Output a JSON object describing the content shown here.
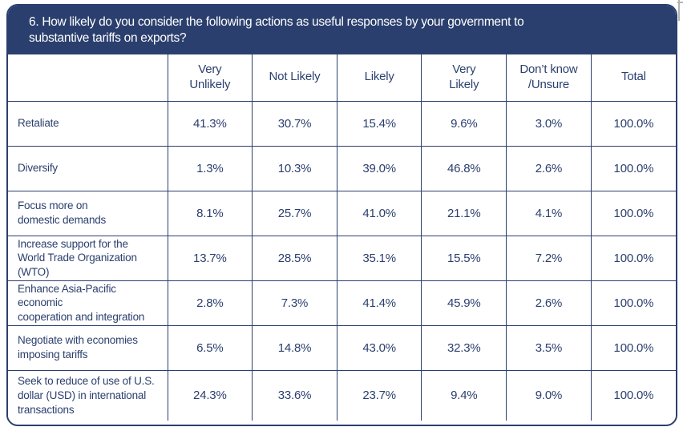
{
  "header": {
    "title": "6. How likely do you consider the following actions as useful responses by your government to\nsubstantive tariffs on exports?"
  },
  "table": {
    "columns": [
      "",
      "Very\nUnlikely",
      "Not Likely",
      "Likely",
      "Very\nLikely",
      "Don’t know\n/Unsure",
      "Total"
    ],
    "rows": [
      {
        "label": "Retaliate",
        "values": [
          "41.3%",
          "30.7%",
          "15.4%",
          "9.6%",
          "3.0%",
          "100.0%"
        ]
      },
      {
        "label": "Diversify",
        "values": [
          "1.3%",
          "10.3%",
          "39.0%",
          "46.8%",
          "2.6%",
          "100.0%"
        ]
      },
      {
        "label": "Focus more on\ndomestic demands",
        "values": [
          "8.1%",
          "25.7%",
          "41.0%",
          "21.1%",
          "4.1%",
          "100.0%"
        ]
      },
      {
        "label": "Increase support for the\nWorld Trade Organization (WTO)",
        "values": [
          "13.7%",
          "28.5%",
          "35.1%",
          "15.5%",
          "7.2%",
          "100.0%"
        ]
      },
      {
        "label": "Enhance Asia-Pacific economic\ncooperation and integration",
        "values": [
          "2.8%",
          "7.3%",
          "41.4%",
          "45.9%",
          "2.6%",
          "100.0%"
        ]
      },
      {
        "label": "Negotiate with economies\nimposing tariffs",
        "values": [
          "6.5%",
          "14.8%",
          "43.0%",
          "32.3%",
          "3.5%",
          "100.0%"
        ]
      },
      {
        "label": "Seek to reduce of use of U.S.\ndollar (USD) in international\ntransactions",
        "values": [
          "24.3%",
          "33.6%",
          "23.7%",
          "9.4%",
          "9.0%",
          "100.0%"
        ]
      }
    ]
  },
  "colors": {
    "navy": "#2b3f6e",
    "background": "#ffffff",
    "artifact_gray": "#b3b3b3"
  },
  "chart_data": {
    "type": "table",
    "title": "6. How likely do you consider the following actions as useful responses by your government to substantive tariffs on exports?",
    "columns": [
      "Very Unlikely",
      "Not Likely",
      "Likely",
      "Very Likely",
      "Don't know /Unsure",
      "Total"
    ],
    "rows": [
      {
        "action": "Retaliate",
        "very_unlikely": 41.3,
        "not_likely": 30.7,
        "likely": 15.4,
        "very_likely": 9.6,
        "dont_know_unsure": 3.0,
        "total": 100.0
      },
      {
        "action": "Diversify",
        "very_unlikely": 1.3,
        "not_likely": 10.3,
        "likely": 39.0,
        "very_likely": 46.8,
        "dont_know_unsure": 2.6,
        "total": 100.0
      },
      {
        "action": "Focus more on domestic demands",
        "very_unlikely": 8.1,
        "not_likely": 25.7,
        "likely": 41.0,
        "very_likely": 21.1,
        "dont_know_unsure": 4.1,
        "total": 100.0
      },
      {
        "action": "Increase support for the World Trade Organization (WTO)",
        "very_unlikely": 13.7,
        "not_likely": 28.5,
        "likely": 35.1,
        "very_likely": 15.5,
        "dont_know_unsure": 7.2,
        "total": 100.0
      },
      {
        "action": "Enhance Asia-Pacific economic cooperation and integration",
        "very_unlikely": 2.8,
        "not_likely": 7.3,
        "likely": 41.4,
        "very_likely": 45.9,
        "dont_know_unsure": 2.6,
        "total": 100.0
      },
      {
        "action": "Negotiate with economies imposing tariffs",
        "very_unlikely": 6.5,
        "not_likely": 14.8,
        "likely": 43.0,
        "very_likely": 32.3,
        "dont_know_unsure": 3.5,
        "total": 100.0
      },
      {
        "action": "Seek to reduce of use of U.S. dollar (USD) in international transactions",
        "very_unlikely": 24.3,
        "not_likely": 33.6,
        "likely": 23.7,
        "very_likely": 9.4,
        "dont_know_unsure": 9.0,
        "total": 100.0
      }
    ]
  }
}
